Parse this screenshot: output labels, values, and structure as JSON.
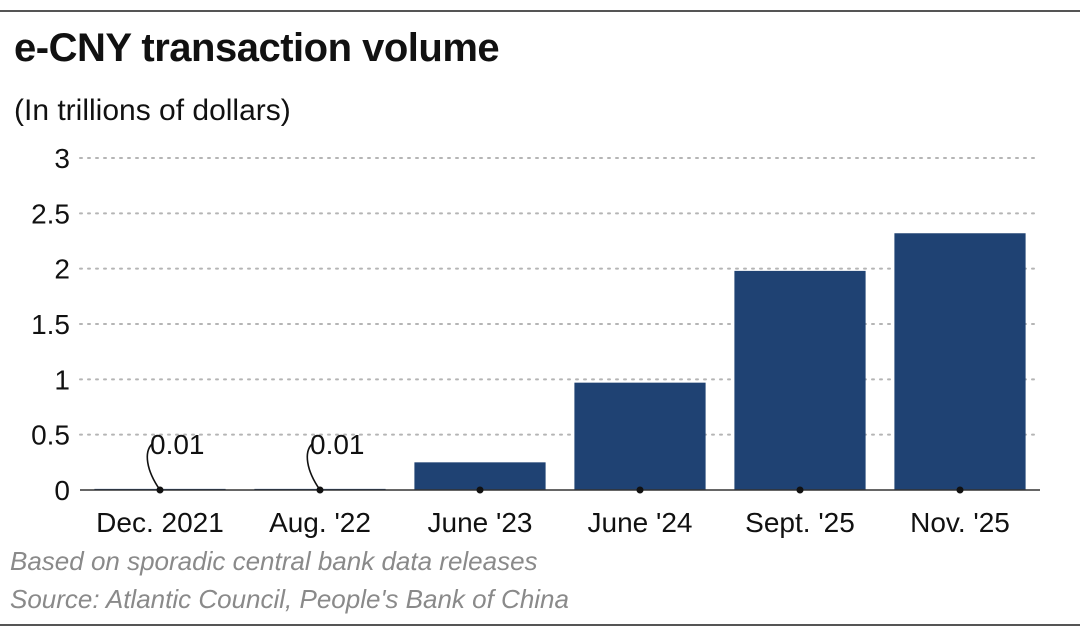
{
  "header": {
    "title": "e-CNY transaction volume",
    "subtitle": "(In trillions of dollars)"
  },
  "footer": {
    "note": "Based on sporadic central bank data releases",
    "source": "Source: Atlantic Council, People's Bank of China"
  },
  "colors": {
    "bar": "#1f4273",
    "grid": "#b5b5b5",
    "axis": "#333333"
  },
  "chart_data": {
    "type": "bar",
    "title": "e-CNY transaction volume",
    "subtitle": "(In trillions of dollars)",
    "xlabel": "",
    "ylabel": "",
    "categories": [
      "Dec. 2021",
      "Aug. '22",
      "June '23",
      "June '24",
      "Sept. '25",
      "Nov. '25"
    ],
    "values": [
      0.01,
      0.01,
      0.25,
      0.97,
      1.98,
      2.32
    ],
    "data_labels": [
      "0.01",
      "0.01",
      "",
      "",
      "",
      ""
    ],
    "ylim": [
      0,
      3
    ],
    "yticks": [
      0,
      0.5,
      1,
      1.5,
      2,
      2.5,
      3
    ],
    "ytick_labels": [
      "0",
      "0.5",
      "1",
      "1.5",
      "2",
      "2.5",
      "3"
    ],
    "grid": "horizontal dotted"
  }
}
